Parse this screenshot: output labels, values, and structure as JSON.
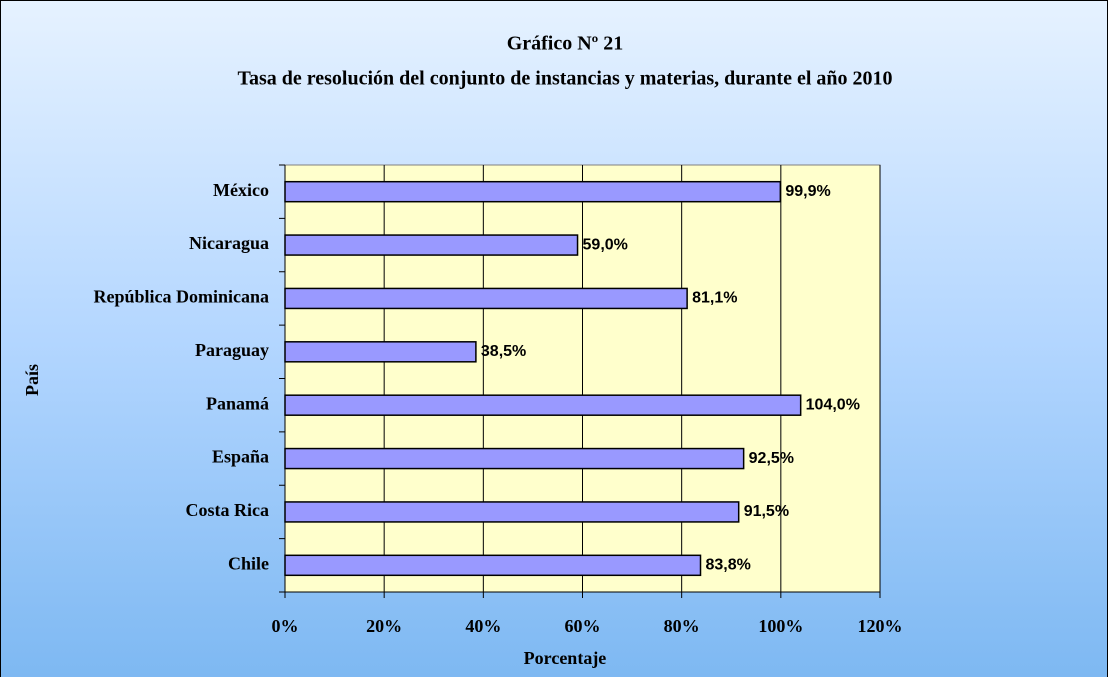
{
  "chart_data": {
    "type": "bar",
    "orientation": "horizontal",
    "title": "Gráfico Nº 21",
    "subtitle": "Tasa de resolución del conjunto de instancias y materias, durante el año 2010",
    "x_label": "Porcentaje",
    "y_label": "País",
    "categories": [
      "México",
      "Nicaragua",
      "República Dominicana",
      "Paraguay",
      "Panamá",
      "España",
      "Costa Rica",
      "Chile"
    ],
    "values": [
      99.9,
      59.0,
      81.1,
      38.5,
      104.0,
      92.5,
      91.5,
      83.8
    ],
    "value_labels": [
      "99,9%",
      "59,0%",
      "81,1%",
      "38,5%",
      "104,0%",
      "92,5%",
      "91,5%",
      "83,8%"
    ],
    "color": "#9999ff",
    "xlim": [
      0,
      120
    ],
    "xticks": [
      {
        "value": 0,
        "label": "0%"
      },
      {
        "value": 20,
        "label": "20%"
      },
      {
        "value": 40,
        "label": "40%"
      },
      {
        "value": 60,
        "label": "60%"
      },
      {
        "value": 80,
        "label": "80%"
      },
      {
        "value": 100,
        "label": "100%"
      },
      {
        "value": 120,
        "label": "120%"
      }
    ],
    "grid": true
  }
}
